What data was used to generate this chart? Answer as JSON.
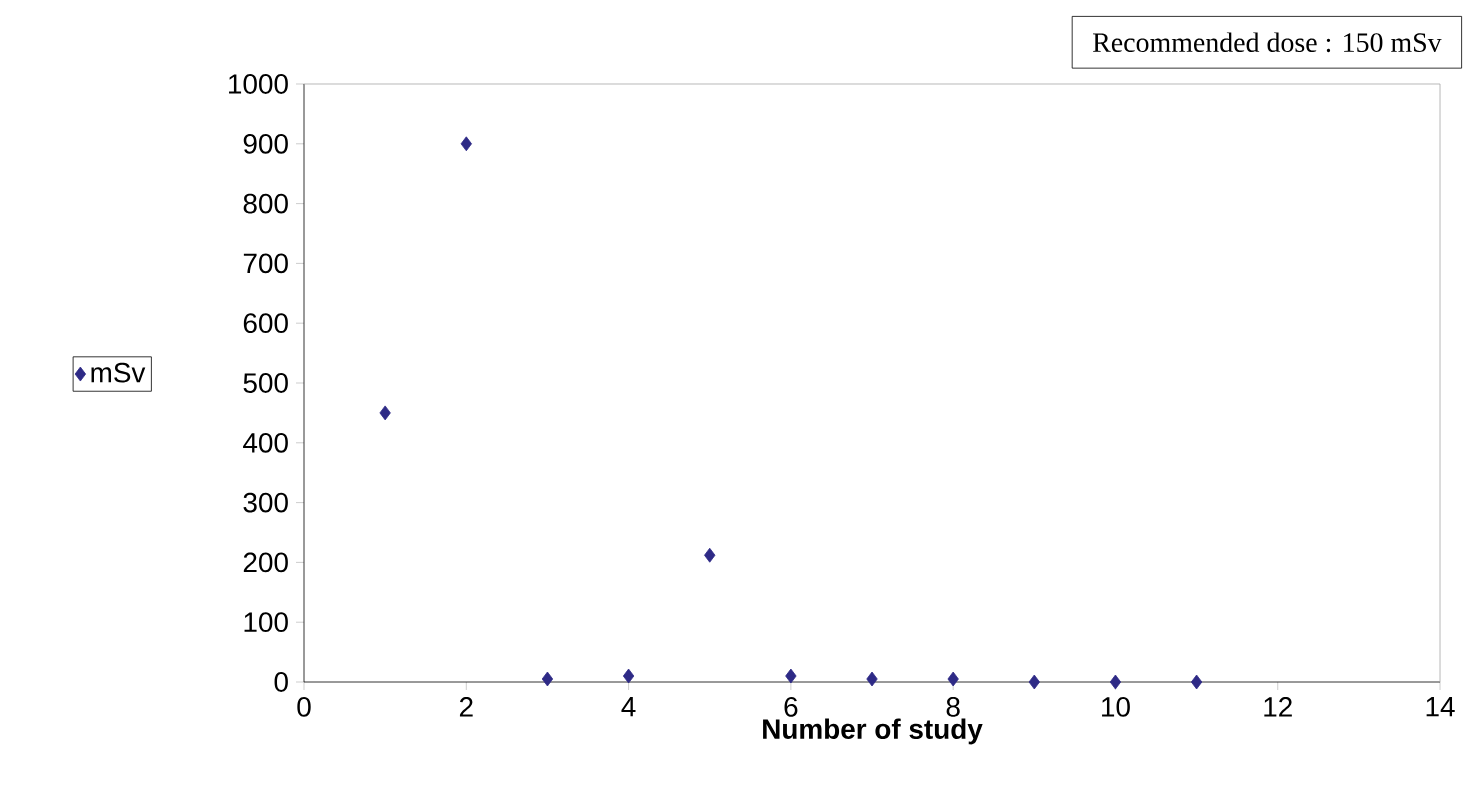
{
  "chart_data": {
    "type": "scatter",
    "xlabel": "Number of study",
    "x": [
      1,
      2,
      3,
      4,
      5,
      6,
      7,
      8,
      9,
      10,
      11
    ],
    "series": [
      {
        "name": "mSv",
        "color": "#2e2a86",
        "values": [
          450,
          900,
          5,
          10,
          212,
          10,
          5,
          5,
          0,
          0,
          0
        ]
      }
    ],
    "marker": "diamond",
    "legend": "left",
    "xlim": [
      0,
      14
    ],
    "xticks": [
      0,
      2,
      4,
      6,
      8,
      10,
      12,
      14
    ],
    "ylim": [
      0,
      1000
    ],
    "yticks": [
      0,
      100,
      200,
      300,
      400,
      500,
      600,
      700,
      800,
      900,
      1000
    ],
    "annotations": [
      "Recommended dose : 150 mSv"
    ]
  }
}
